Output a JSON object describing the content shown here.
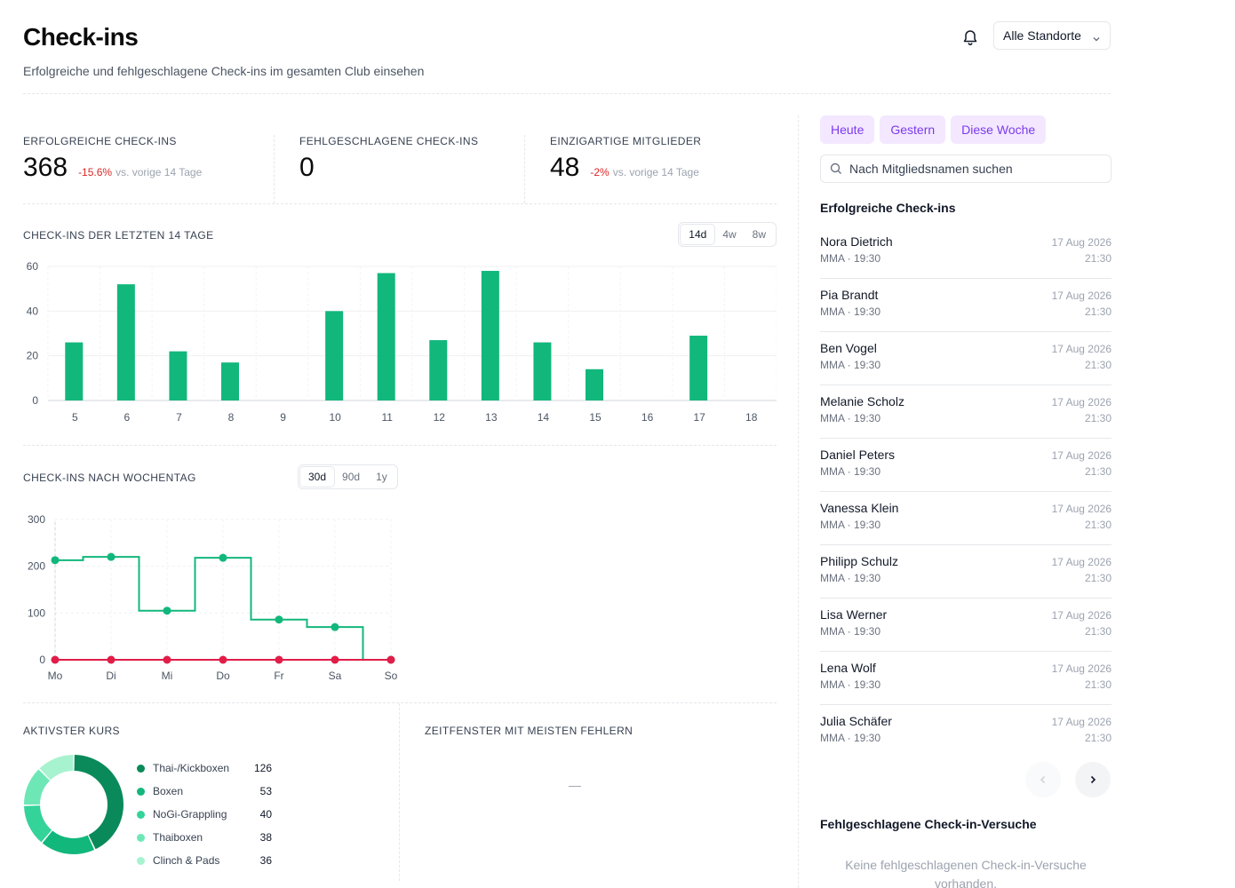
{
  "header": {
    "title": "Check-ins",
    "subtitle": "Erfolgreiche und fehlgeschlagene Check-ins im gesamten Club einsehen",
    "location_select": "Alle Standorte"
  },
  "kpis": [
    {
      "label": "Erfolgreiche Check-ins",
      "value": "368",
      "delta": "-15.6%",
      "comparison": "vs. vorige 14 Tage"
    },
    {
      "label": "Fehlgeschlagene Check-ins",
      "value": "0"
    },
    {
      "label": "Einzigartige Mitglieder",
      "value": "48",
      "delta": "-2%",
      "comparison": "vs. vorige 14 Tage"
    }
  ],
  "bar_section": {
    "title": "Check-ins der letzten 14 Tage",
    "ranges": [
      "14d",
      "4w",
      "8w"
    ],
    "active_range": "14d"
  },
  "line_section": {
    "title": "Check-ins nach Wochentag",
    "ranges": [
      "30d",
      "90d",
      "1y"
    ],
    "active_range": "30d"
  },
  "kurs_section": {
    "title": "Aktivster Kurs",
    "items": [
      {
        "name": "Thai-/Kickboxen",
        "value": "126",
        "color": "#0a8a5a"
      },
      {
        "name": "Boxen",
        "value": "53",
        "color": "#12b77c"
      },
      {
        "name": "NoGi-Grappling",
        "value": "40",
        "color": "#34d399"
      },
      {
        "name": "Thaiboxen",
        "value": "38",
        "color": "#6ee7b7"
      },
      {
        "name": "Clinch & Pads",
        "value": "36",
        "color": "#a7f3d0"
      }
    ]
  },
  "fehler_section": {
    "title": "Zeitfenster mit meisten Fehlern",
    "empty": "—"
  },
  "sidebar": {
    "chips": [
      "Heute",
      "Gestern",
      "Diese Woche"
    ],
    "search_placeholder": "Nach Mitgliedsnamen suchen",
    "list_title": "Erfolgreiche Check-ins",
    "checkins": [
      {
        "name": "Nora Dietrich",
        "sub": "MMA · 19:30",
        "date": "17 Aug 2026",
        "time": "21:30"
      },
      {
        "name": "Pia Brandt",
        "sub": "MMA · 19:30",
        "date": "17 Aug 2026",
        "time": "21:30"
      },
      {
        "name": "Ben Vogel",
        "sub": "MMA · 19:30",
        "date": "17 Aug 2026",
        "time": "21:30"
      },
      {
        "name": "Melanie Scholz",
        "sub": "MMA · 19:30",
        "date": "17 Aug 2026",
        "time": "21:30"
      },
      {
        "name": "Daniel Peters",
        "sub": "MMA · 19:30",
        "date": "17 Aug 2026",
        "time": "21:30"
      },
      {
        "name": "Vanessa Klein",
        "sub": "MMA · 19:30",
        "date": "17 Aug 2026",
        "time": "21:30"
      },
      {
        "name": "Philipp Schulz",
        "sub": "MMA · 19:30",
        "date": "17 Aug 2026",
        "time": "21:30"
      },
      {
        "name": "Lisa Werner",
        "sub": "MMA · 19:30",
        "date": "17 Aug 2026",
        "time": "21:30"
      },
      {
        "name": "Lena Wolf",
        "sub": "MMA · 19:30",
        "date": "17 Aug 2026",
        "time": "21:30"
      },
      {
        "name": "Julia Schäfer",
        "sub": "MMA · 19:30",
        "date": "17 Aug 2026",
        "time": "21:30"
      }
    ],
    "failed_title": "Fehlgeschlagene Check-in-Versuche",
    "failed_empty": "Keine fehlgeschlagenen Check-in-Versuche vorhanden."
  },
  "chart_data": [
    {
      "type": "bar",
      "categories": [
        "5",
        "6",
        "7",
        "8",
        "9",
        "10",
        "11",
        "12",
        "13",
        "14",
        "15",
        "16",
        "17",
        "18"
      ],
      "values": [
        26,
        52,
        22,
        17,
        0,
        40,
        57,
        27,
        58,
        26,
        14,
        0,
        29,
        0
      ],
      "ylim": [
        0,
        60
      ],
      "yticks": [
        0,
        20,
        40,
        60
      ],
      "grid": true,
      "color": "#12b77c"
    },
    {
      "type": "line",
      "categories": [
        "Mo",
        "Di",
        "Mi",
        "Do",
        "Fr",
        "Sa",
        "So"
      ],
      "series": [
        {
          "values": [
            213,
            220,
            105,
            218,
            86,
            70,
            0
          ],
          "color": "#12b77c",
          "step": true
        },
        {
          "values": [
            0,
            0,
            0,
            0,
            0,
            0,
            0
          ],
          "color": "#e11d48"
        }
      ],
      "ylim": [
        0,
        300
      ],
      "yticks": [
        0,
        100,
        200,
        300
      ],
      "grid": true
    },
    {
      "type": "pie",
      "donut": true,
      "categories": [
        "Thai-/Kickboxen",
        "Boxen",
        "NoGi-Grappling",
        "Thaiboxen",
        "Clinch & Pads"
      ],
      "values": [
        126,
        53,
        40,
        38,
        36
      ],
      "colors": [
        "#0a8a5a",
        "#12b77c",
        "#34d399",
        "#6ee7b7",
        "#a7f3d0"
      ]
    }
  ]
}
